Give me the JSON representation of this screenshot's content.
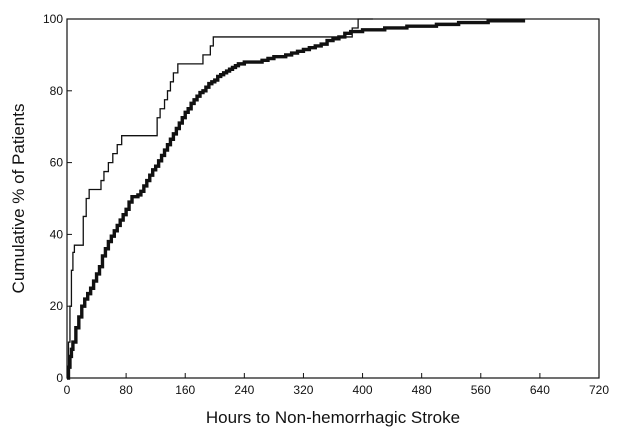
{
  "chart_data": {
    "type": "line",
    "title": "",
    "xlabel": "Hours to Non-hemorrhagic Stroke",
    "ylabel": "Cumulative % of Patients",
    "xlim": [
      0,
      720
    ],
    "ylim": [
      0,
      100
    ],
    "xticks": [
      0,
      80,
      160,
      240,
      320,
      400,
      480,
      560,
      640,
      720
    ],
    "yticks": [
      0,
      20,
      40,
      60,
      80,
      100
    ],
    "grid": false,
    "legend": "none",
    "step": true,
    "series": [
      {
        "style": "thin",
        "color": "#111111",
        "x": [
          0,
          2,
          4,
          6,
          8,
          10,
          14,
          22,
          26,
          30,
          38,
          46,
          50,
          56,
          62,
          68,
          74,
          122,
          126,
          132,
          136,
          140,
          144,
          150,
          156,
          166,
          184,
          194,
          198,
          202,
          386,
          394,
          414
        ],
        "y": [
          0,
          10,
          20,
          30,
          35,
          37,
          37,
          45,
          50,
          52.5,
          52.5,
          55,
          57.5,
          60,
          62.5,
          65,
          67.5,
          72.5,
          75,
          77.5,
          80,
          82.5,
          85,
          87.5,
          87.5,
          87.5,
          90,
          92.5,
          95,
          95,
          97.5,
          100,
          100
        ]
      },
      {
        "style": "thick",
        "color": "#111111",
        "x": [
          0,
          2,
          4,
          6,
          8,
          12,
          16,
          20,
          24,
          28,
          32,
          36,
          40,
          44,
          48,
          52,
          56,
          60,
          64,
          68,
          72,
          76,
          80,
          84,
          88,
          92,
          96,
          100,
          104,
          108,
          112,
          116,
          120,
          124,
          128,
          132,
          136,
          140,
          144,
          148,
          152,
          156,
          160,
          164,
          168,
          172,
          176,
          180,
          184,
          188,
          192,
          196,
          200,
          204,
          208,
          212,
          216,
          220,
          224,
          228,
          232,
          236,
          240,
          248,
          256,
          264,
          272,
          280,
          288,
          296,
          304,
          312,
          320,
          328,
          336,
          344,
          352,
          360,
          368,
          376,
          384,
          392,
          400,
          410,
          420,
          430,
          440,
          450,
          460,
          470,
          480,
          490,
          500,
          510,
          520,
          530,
          540,
          550,
          560,
          570,
          580,
          590,
          600,
          610,
          620
        ],
        "y": [
          0,
          3,
          6,
          8,
          10,
          14,
          17,
          20,
          22,
          23.5,
          25,
          27,
          29,
          31,
          34,
          36,
          38,
          39.5,
          41,
          42.5,
          44,
          45.5,
          47,
          49,
          50.5,
          50.5,
          51,
          52,
          53.5,
          55,
          56.5,
          58,
          59,
          60.5,
          62,
          63.5,
          65,
          66.5,
          68,
          69.5,
          71,
          72.5,
          74,
          75,
          76.5,
          77.5,
          78.5,
          79.5,
          80,
          81,
          82,
          82.5,
          83,
          84,
          84.5,
          85,
          85.5,
          86,
          86.5,
          87,
          87.5,
          87.5,
          88,
          88,
          88,
          88.5,
          89,
          89.5,
          89.5,
          90,
          90.5,
          91,
          91.5,
          92,
          92.5,
          93,
          94,
          94.5,
          95,
          96,
          96.5,
          96.5,
          97,
          97,
          97,
          97.5,
          97.5,
          97.5,
          98,
          98,
          98,
          98,
          98.5,
          98.5,
          98.5,
          99,
          99,
          99,
          99,
          99.5,
          99.5,
          99.5,
          99.5,
          99.5,
          99.5
        ]
      }
    ]
  }
}
